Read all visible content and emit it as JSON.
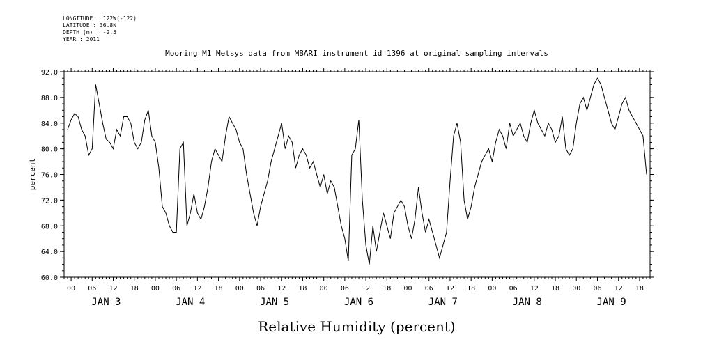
{
  "meta": {
    "longitude": "LONGITUDE : 122W(-122)",
    "latitude": "LATITUDE : 36.8N",
    "depth": "DEPTH (m) : -2.5",
    "year": "YEAR : 2011"
  },
  "chart_data": {
    "type": "line",
    "title": "Mooring M1 Metsys data from MBARI instrument id 1396 at original sampling intervals",
    "xlabel": "Relative Humidity (percent)",
    "ylabel": "percent",
    "ylim": [
      60,
      92
    ],
    "yticks": [
      "60.0",
      "64.0",
      "68.0",
      "72.0",
      "76.0",
      "80.0",
      "84.0",
      "88.0",
      "92.0"
    ],
    "xlim_hours": [
      -2,
      165
    ],
    "hour_tick_labels": [
      "00",
      "06",
      "12",
      "18"
    ],
    "day_labels": [
      "JAN  3",
      "JAN  4",
      "JAN  5",
      "JAN  6",
      "JAN  7",
      "JAN  8",
      "JAN  9"
    ],
    "grid": false,
    "series": [
      {
        "x": [
          -1,
          0,
          1,
          2,
          3,
          4,
          5,
          6,
          7,
          8,
          9,
          10,
          11,
          12,
          13,
          14,
          15,
          16,
          17,
          18,
          19,
          20,
          21,
          22,
          23,
          24,
          25,
          26,
          27,
          28,
          29,
          30,
          31,
          32,
          33,
          34,
          35,
          36,
          37,
          38,
          39,
          40,
          41,
          42,
          43,
          44,
          45,
          46,
          47,
          48,
          49,
          50,
          51,
          52,
          53,
          54,
          55,
          56,
          57,
          58,
          59,
          60,
          61,
          62,
          63,
          64,
          65,
          66,
          67,
          68,
          69,
          70,
          71,
          72,
          73,
          74,
          75,
          76,
          77,
          78,
          79,
          80,
          81,
          82,
          83,
          84,
          85,
          86,
          87,
          88,
          89,
          90,
          91,
          92,
          93,
          94,
          95,
          96,
          97,
          98,
          99,
          100,
          101,
          102,
          103,
          104,
          105,
          106,
          107,
          108,
          109,
          110,
          111,
          112,
          113,
          114,
          115,
          116,
          117,
          118,
          119,
          120,
          121,
          122,
          123,
          124,
          125,
          126,
          127,
          128,
          129,
          130,
          131,
          132,
          133,
          134,
          135,
          136,
          137,
          138,
          139,
          140,
          141,
          142,
          143,
          144,
          145,
          146,
          147,
          148,
          149,
          150,
          151,
          152,
          153,
          154,
          155,
          156,
          157,
          158,
          159,
          160,
          161,
          162,
          163,
          164
        ],
        "values": [
          83,
          84.5,
          85.5,
          85,
          83,
          82,
          79,
          80,
          90,
          87,
          84,
          81.5,
          81,
          80,
          83,
          82,
          85,
          85,
          84,
          81,
          80,
          81,
          84.5,
          86,
          82,
          81,
          77,
          71,
          70,
          68,
          67,
          67,
          80,
          81,
          68,
          70,
          73,
          70,
          69,
          71,
          74,
          78,
          80,
          79,
          78,
          82,
          85,
          84,
          83,
          81,
          80,
          76,
          73,
          70,
          68,
          71,
          73,
          75,
          78,
          80,
          82,
          84,
          80,
          82,
          81,
          77,
          79,
          80,
          79,
          77,
          78,
          76,
          74,
          76,
          73,
          75,
          74,
          71,
          68,
          66,
          62.5,
          79,
          80,
          84.5,
          72,
          65,
          62,
          68,
          64,
          67,
          70,
          68,
          66,
          70,
          71,
          72,
          71,
          68,
          66,
          69,
          74,
          70,
          67,
          69,
          67,
          65,
          63,
          65,
          67,
          75,
          82,
          84,
          81,
          72,
          69,
          71,
          74,
          76,
          78,
          79,
          80,
          78,
          81,
          83,
          82,
          80,
          84,
          82,
          83,
          84,
          82,
          81,
          84,
          86,
          84,
          83,
          82,
          84,
          83,
          81,
          82,
          85,
          80,
          79,
          80,
          84,
          87,
          88,
          86,
          88,
          90,
          91,
          90,
          88,
          86,
          84,
          83,
          85,
          87,
          88,
          86,
          85,
          84,
          83,
          82,
          76
        ],
        "line_color": "#000000"
      }
    ]
  }
}
